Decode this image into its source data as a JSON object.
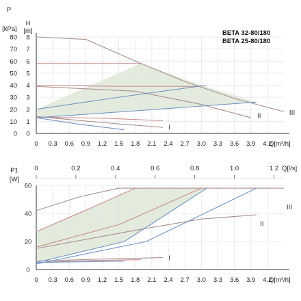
{
  "chart_data": [
    {
      "type": "line",
      "panel": "head",
      "title_lines": [
        "BETA 32-80/180",
        "BETA 25-80/180"
      ],
      "x_axis": {
        "label": "Q[m³/h]",
        "ticks": [
          "0",
          "0.3",
          "0.6",
          "0.9",
          "1.2",
          "1.5",
          "1.8",
          "2.1",
          "2.4",
          "2.7",
          "3.0",
          "3.3",
          "3.6",
          "3.9",
          "4.2"
        ],
        "range": [
          0,
          4.5
        ]
      },
      "y_axis_left": {
        "label_lines": [
          "P",
          "[kPa]"
        ],
        "ticks": [
          "0",
          "10",
          "20",
          "30",
          "40",
          "50",
          "60",
          "70",
          "80"
        ],
        "range": [
          0,
          80
        ]
      },
      "y_axis_right": {
        "label_lines": [
          "H",
          "[m]"
        ],
        "ticks": [
          "0",
          "1",
          "2",
          "3",
          "4",
          "5",
          "6",
          "7",
          "8"
        ],
        "range": [
          0,
          8
        ]
      },
      "series": [
        {
          "name": "III",
          "color": "#a88e8e",
          "x": [
            0,
            0.9,
            1.8,
            2.7,
            3.6,
            4.5
          ],
          "y": [
            8.0,
            7.8,
            6.0,
            4.3,
            2.9,
            1.8
          ]
        },
        {
          "name": "II",
          "color": "#a88e8e",
          "x": [
            0,
            1.8,
            3.0,
            3.9
          ],
          "y": [
            3.9,
            3.5,
            2.4,
            1.3
          ]
        },
        {
          "name": "I",
          "color": "#a88e8e",
          "x": [
            0,
            1.2,
            2.3
          ],
          "y": [
            1.4,
            0.9,
            0.5
          ]
        },
        {
          "color": "#c98b8b",
          "x": [
            0,
            1.2,
            1.9
          ],
          "y": [
            5.8,
            5.8,
            5.8
          ]
        },
        {
          "color": "#c98b8b",
          "x": [
            0,
            1.5,
            3.0
          ],
          "y": [
            4.0,
            3.9,
            3.9
          ]
        },
        {
          "color": "#c98b8b",
          "x": [
            0,
            1.3,
            2.3
          ],
          "y": [
            1.35,
            1.25,
            1.05
          ]
        },
        {
          "color": "#6f94c4",
          "x": [
            0,
            1.5,
            3.1
          ],
          "y": [
            2.0,
            3.0,
            4.0
          ]
        },
        {
          "color": "#6f94c4",
          "x": [
            0,
            1.9,
            4.0
          ],
          "y": [
            1.3,
            1.9,
            2.6
          ]
        },
        {
          "color": "#6f94c4",
          "x": [
            0,
            0.8,
            1.6
          ],
          "y": [
            1.3,
            0.75,
            0.3
          ]
        }
      ],
      "shaded_region": {
        "color": "#e3ebdc",
        "x": [
          0,
          1.9,
          3.0,
          4.0,
          0
        ],
        "y": [
          2.0,
          5.8,
          4.0,
          2.6,
          1.3
        ]
      },
      "curve_labels": [
        {
          "text": "III",
          "x": 4.65,
          "y": 1.75
        },
        {
          "text": "II",
          "x": 4.05,
          "y": 1.5
        },
        {
          "text": "I",
          "x": 2.42,
          "y": 0.55
        }
      ]
    },
    {
      "type": "line",
      "panel": "power",
      "x_axis_top": {
        "label": "Q[l/s]",
        "ticks": [
          "0",
          "0.2",
          "0.4",
          "0.6",
          "0.8",
          "1.0",
          "1.2"
        ],
        "values": [
          0,
          0.2,
          0.4,
          0.6,
          0.8,
          1.0,
          1.2
        ],
        "range": [
          0,
          1.25
        ]
      },
      "x_axis": {
        "label": "Q[m³/h]",
        "ticks": [
          "0",
          "0.3",
          "0.6",
          "0.9",
          "1.2",
          "1.5",
          "1.8",
          "2.1",
          "2.4",
          "2.7",
          "3.0",
          "3.3",
          "3.6",
          "3.9",
          "4.2"
        ],
        "range": [
          0,
          4.5
        ]
      },
      "y_axis": {
        "label_lines": [
          "P1",
          "[W]"
        ],
        "ticks": [
          "0",
          "20",
          "40",
          "60"
        ],
        "range": [
          0,
          60
        ]
      },
      "series": [
        {
          "color": "#a88e8e",
          "x": [
            0,
            0.8,
            1.5,
            4.5
          ],
          "y": [
            42,
            52,
            58,
            58
          ]
        },
        {
          "color": "#a88e8e",
          "x": [
            0,
            1.8,
            3.0,
            4.0
          ],
          "y": [
            15,
            28,
            36,
            39
          ]
        },
        {
          "color": "#a88e8e",
          "x": [
            0,
            1.2,
            2.3
          ],
          "y": [
            6,
            7.5,
            8.5
          ]
        },
        {
          "color": "#c98b8b",
          "x": [
            0,
            1.0,
            1.8
          ],
          "y": [
            27,
            44,
            58
          ]
        },
        {
          "color": "#c98b8b",
          "x": [
            0,
            1.5,
            3.0
          ],
          "y": [
            16,
            32,
            58
          ]
        },
        {
          "color": "#c98b8b",
          "x": [
            0,
            1.0,
            1.9
          ],
          "y": [
            5,
            6.5,
            7
          ]
        },
        {
          "color": "#6f94c4",
          "x": [
            0,
            1.6,
            3.1
          ],
          "y": [
            5,
            20,
            58
          ]
        },
        {
          "color": "#6f94c4",
          "x": [
            0,
            2.0,
            4.0
          ],
          "y": [
            4,
            20,
            58
          ]
        },
        {
          "color": "#6f94c4",
          "x": [
            0,
            0.8,
            1.6
          ],
          "y": [
            5,
            5.5,
            6
          ]
        }
      ],
      "shaded_region": {
        "color": "#e3ebdc",
        "x": [
          0,
          1.8,
          3.0,
          3.1,
          1.6,
          0
        ],
        "y": [
          27,
          58,
          58,
          58,
          20,
          5
        ]
      },
      "curve_labels": [
        {
          "text": "III",
          "x": 4.6,
          "y": 45
        },
        {
          "text": "II",
          "x": 4.1,
          "y": 33
        },
        {
          "text": "I",
          "x": 2.42,
          "y": 8.5
        }
      ]
    }
  ]
}
